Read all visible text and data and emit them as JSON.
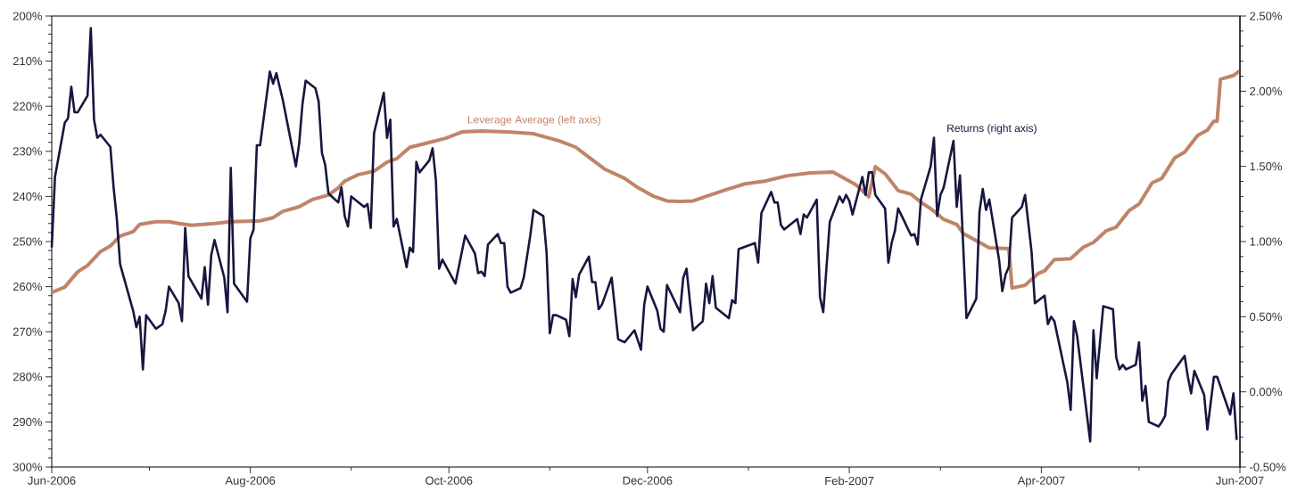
{
  "chart_data": {
    "type": "line",
    "line_style": "solid",
    "xlim": [
      "2006-06-01",
      "2007-06-01"
    ],
    "xticks": [
      {
        "value": "2006-06-01",
        "label": "Jun-2006"
      },
      {
        "value": "2006-07-01",
        "label": null
      },
      {
        "value": "2006-08-01",
        "label": "Aug-2006"
      },
      {
        "value": "2006-09-01",
        "label": null
      },
      {
        "value": "2006-10-01",
        "label": "Oct-2006"
      },
      {
        "value": "2006-11-01",
        "label": null
      },
      {
        "value": "2006-12-01",
        "label": "Dec-2006"
      },
      {
        "value": "2007-01-01",
        "label": null
      },
      {
        "value": "2007-02-01",
        "label": "Feb-2007"
      },
      {
        "value": "2007-03-01",
        "label": null
      },
      {
        "value": "2007-04-01",
        "label": "Apr-2007"
      },
      {
        "value": "2007-05-01",
        "label": null
      },
      {
        "value": "2007-06-01",
        "label": "Jun-2007"
      }
    ],
    "ylim": [
      300,
      200
    ],
    "yticks": [
      {
        "value": 200,
        "label": "200%"
      },
      {
        "value": 202,
        "label": null
      },
      {
        "value": 204,
        "label": null
      },
      {
        "value": 206,
        "label": null
      },
      {
        "value": 208,
        "label": null
      },
      {
        "value": 210,
        "label": "210%"
      },
      {
        "value": 212,
        "label": null
      },
      {
        "value": 214,
        "label": null
      },
      {
        "value": 216,
        "label": null
      },
      {
        "value": 218,
        "label": null
      },
      {
        "value": 220,
        "label": "220%"
      },
      {
        "value": 222,
        "label": null
      },
      {
        "value": 224,
        "label": null
      },
      {
        "value": 226,
        "label": null
      },
      {
        "value": 228,
        "label": null
      },
      {
        "value": 230,
        "label": "230%"
      },
      {
        "value": 232,
        "label": null
      },
      {
        "value": 234,
        "label": null
      },
      {
        "value": 236,
        "label": null
      },
      {
        "value": 238,
        "label": null
      },
      {
        "value": 240,
        "label": "240%"
      },
      {
        "value": 242,
        "label": null
      },
      {
        "value": 244,
        "label": null
      },
      {
        "value": 246,
        "label": null
      },
      {
        "value": 248,
        "label": null
      },
      {
        "value": 250,
        "label": "250%"
      },
      {
        "value": 252,
        "label": null
      },
      {
        "value": 254,
        "label": null
      },
      {
        "value": 256,
        "label": null
      },
      {
        "value": 258,
        "label": null
      },
      {
        "value": 260,
        "label": "260%"
      },
      {
        "value": 262,
        "label": null
      },
      {
        "value": 264,
        "label": null
      },
      {
        "value": 266,
        "label": null
      },
      {
        "value": 268,
        "label": null
      },
      {
        "value": 270,
        "label": "270%"
      },
      {
        "value": 272,
        "label": null
      },
      {
        "value": 274,
        "label": null
      },
      {
        "value": 276,
        "label": null
      },
      {
        "value": 278,
        "label": null
      },
      {
        "value": 280,
        "label": "280%"
      },
      {
        "value": 282,
        "label": null
      },
      {
        "value": 284,
        "label": null
      },
      {
        "value": 286,
        "label": null
      },
      {
        "value": 288,
        "label": null
      },
      {
        "value": 290,
        "label": "290%"
      },
      {
        "value": 292,
        "label": null
      },
      {
        "value": 294,
        "label": null
      },
      {
        "value": 296,
        "label": null
      },
      {
        "value": 298,
        "label": null
      },
      {
        "value": 300,
        "label": "300%"
      }
    ],
    "y2lim": [
      -0.5,
      2.5
    ],
    "y2ticks": [
      {
        "value": -0.5,
        "label": "-0.50%"
      },
      {
        "value": -0.4,
        "label": null
      },
      {
        "value": -0.3,
        "label": null
      },
      {
        "value": -0.2,
        "label": null
      },
      {
        "value": -0.1,
        "label": null
      },
      {
        "value": 0,
        "label": "0.00%"
      },
      {
        "value": 0.1,
        "label": null
      },
      {
        "value": 0.2,
        "label": null
      },
      {
        "value": 0.3,
        "label": null
      },
      {
        "value": 0.4,
        "label": null
      },
      {
        "value": 0.5,
        "label": "0.50%"
      },
      {
        "value": 0.6,
        "label": null
      },
      {
        "value": 0.7,
        "label": null
      },
      {
        "value": 0.8,
        "label": null
      },
      {
        "value": 0.9,
        "label": null
      },
      {
        "value": 1.0,
        "label": "1.00%"
      },
      {
        "value": 1.1,
        "label": null
      },
      {
        "value": 1.2,
        "label": null
      },
      {
        "value": 1.3,
        "label": null
      },
      {
        "value": 1.4,
        "label": null
      },
      {
        "value": 1.5,
        "label": "1.50%"
      },
      {
        "value": 1.6,
        "label": null
      },
      {
        "value": 1.7,
        "label": null
      },
      {
        "value": 1.8,
        "label": null
      },
      {
        "value": 1.9,
        "label": null
      },
      {
        "value": 2.0,
        "label": "2.00%"
      },
      {
        "value": 2.1,
        "label": null
      },
      {
        "value": 2.2,
        "label": null
      },
      {
        "value": 2.3,
        "label": null
      },
      {
        "value": 2.4,
        "label": null
      },
      {
        "value": 2.5,
        "label": "2.50%"
      }
    ],
    "series": [
      {
        "name": "Leverage Average (left axis)",
        "color": "#c08469",
        "axis": "y",
        "x": [
          "2006-06-01",
          "2006-06-05",
          "2006-06-09",
          "2006-06-12",
          "2006-06-16",
          "2006-06-19",
          "2006-06-22",
          "2006-06-26",
          "2006-06-28",
          "2006-07-03",
          "2006-07-07",
          "2006-07-10",
          "2006-07-14",
          "2006-07-21",
          "2006-07-26",
          "2006-08-04",
          "2006-08-08",
          "2006-08-11",
          "2006-08-16",
          "2006-08-20",
          "2006-08-25",
          "2006-08-28",
          "2006-08-30",
          "2006-09-03",
          "2006-09-08",
          "2006-09-12",
          "2006-09-15",
          "2006-09-19",
          "2006-09-24",
          "2006-09-30",
          "2006-10-05",
          "2006-10-11",
          "2006-10-19",
          "2006-10-27",
          "2006-11-04",
          "2006-11-09",
          "2006-11-13",
          "2006-11-18",
          "2006-11-24",
          "2006-11-28",
          "2006-12-03",
          "2006-12-07",
          "2006-12-11",
          "2006-12-15",
          "2006-12-21",
          "2006-12-26",
          "2006-12-31",
          "2007-01-06",
          "2007-01-13",
          "2007-01-20",
          "2007-01-27",
          "2007-02-03",
          "2007-02-07",
          "2007-02-09",
          "2007-02-12",
          "2007-02-16",
          "2007-02-20",
          "2007-02-23",
          "2007-02-26",
          "2007-03-02",
          "2007-03-06",
          "2007-03-08",
          "2007-03-12",
          "2007-03-16",
          "2007-03-22",
          "2007-03-23",
          "2007-03-27",
          "2007-03-31",
          "2007-04-02",
          "2007-04-05",
          "2007-04-10",
          "2007-04-14",
          "2007-04-17",
          "2007-04-21",
          "2007-04-24",
          "2007-04-28",
          "2007-05-01",
          "2007-05-05",
          "2007-05-08",
          "2007-05-12",
          "2007-05-15",
          "2007-05-19",
          "2007-05-22",
          "2007-05-24",
          "2007-05-25",
          "2007-05-26",
          "2007-05-30",
          "2007-06-01"
        ],
        "values": [
          261.3,
          260.1,
          256.7,
          255.3,
          252.2,
          251.0,
          248.8,
          247.8,
          246.2,
          245.6,
          245.6,
          246.0,
          246.4,
          246.0,
          245.6,
          245.4,
          244.7,
          243.3,
          242.3,
          240.7,
          239.7,
          238.1,
          236.6,
          235.2,
          234.4,
          232.4,
          231.6,
          229.1,
          228.2,
          227.1,
          225.7,
          225.5,
          225.7,
          226.1,
          227.7,
          229.1,
          231.3,
          234.0,
          236.0,
          238.0,
          240.0,
          241.0,
          241.1,
          241.0,
          239.5,
          238.3,
          237.2,
          236.6,
          235.4,
          234.8,
          234.6,
          237.4,
          240.1,
          233.4,
          235.0,
          238.7,
          239.5,
          241.3,
          242.7,
          245.1,
          246.2,
          248.2,
          249.8,
          251.4,
          251.6,
          260.3,
          259.7,
          257.1,
          256.5,
          254.0,
          253.8,
          251.2,
          250.2,
          247.6,
          246.8,
          243.1,
          241.7,
          237.0,
          236.0,
          231.4,
          230.2,
          226.5,
          225.3,
          223.3,
          223.3,
          214.0,
          213.2,
          212.1
        ]
      },
      {
        "name": "Returns (right axis)",
        "color": "#16163f",
        "axis": "y2",
        "x": [
          "2006-06-01",
          "2006-06-02",
          "2006-06-05",
          "2006-06-06",
          "2006-06-07",
          "2006-06-08",
          "2006-06-09",
          "2006-06-12",
          "2006-06-13",
          "2006-06-14",
          "2006-06-15",
          "2006-06-16",
          "2006-06-19",
          "2006-06-20",
          "2006-06-21",
          "2006-06-22",
          "2006-06-26",
          "2006-06-27",
          "2006-06-28",
          "2006-06-29",
          "2006-06-30",
          "2006-07-03",
          "2006-07-05",
          "2006-07-06",
          "2006-07-07",
          "2006-07-10",
          "2006-07-11",
          "2006-07-12",
          "2006-07-13",
          "2006-07-17",
          "2006-07-18",
          "2006-07-19",
          "2006-07-20",
          "2006-07-21",
          "2006-07-24",
          "2006-07-25",
          "2006-07-26",
          "2006-07-27",
          "2006-07-31",
          "2006-08-01",
          "2006-08-02",
          "2006-08-03",
          "2006-08-04",
          "2006-08-07",
          "2006-08-08",
          "2006-08-09",
          "2006-08-11",
          "2006-08-15",
          "2006-08-16",
          "2006-08-17",
          "2006-08-18",
          "2006-08-21",
          "2006-08-22",
          "2006-08-23",
          "2006-08-24",
          "2006-08-25",
          "2006-08-28",
          "2006-08-29",
          "2006-08-30",
          "2006-08-31",
          "2006-09-01",
          "2006-09-05",
          "2006-09-06",
          "2006-09-07",
          "2006-09-08",
          "2006-09-11",
          "2006-09-12",
          "2006-09-13",
          "2006-09-14",
          "2006-09-15",
          "2006-09-18",
          "2006-09-19",
          "2006-09-20",
          "2006-09-21",
          "2006-09-22",
          "2006-09-25",
          "2006-09-26",
          "2006-09-27",
          "2006-09-28",
          "2006-09-29",
          "2006-10-03",
          "2006-10-06",
          "2006-10-09",
          "2006-10-10",
          "2006-10-11",
          "2006-10-12",
          "2006-10-13",
          "2006-10-16",
          "2006-10-17",
          "2006-10-18",
          "2006-10-19",
          "2006-10-20",
          "2006-10-23",
          "2006-10-24",
          "2006-10-26",
          "2006-10-27",
          "2006-10-30",
          "2006-10-31",
          "2006-11-01",
          "2006-11-02",
          "2006-11-03",
          "2006-11-06",
          "2006-11-07",
          "2006-11-08",
          "2006-11-09",
          "2006-11-10",
          "2006-11-13",
          "2006-11-14",
          "2006-11-15",
          "2006-11-16",
          "2006-11-17",
          "2006-11-20",
          "2006-11-22",
          "2006-11-24",
          "2006-11-27",
          "2006-11-29",
          "2006-11-30",
          "2006-12-01",
          "2006-12-04",
          "2006-12-05",
          "2006-12-06",
          "2006-12-07",
          "2006-12-11",
          "2006-12-12",
          "2006-12-13",
          "2006-12-14",
          "2006-12-15",
          "2006-12-18",
          "2006-12-19",
          "2006-12-20",
          "2006-12-21",
          "2006-12-22",
          "2006-12-26",
          "2006-12-27",
          "2006-12-28",
          "2006-12-29",
          "2007-01-03",
          "2007-01-04",
          "2007-01-05",
          "2007-01-08",
          "2007-01-09",
          "2007-01-10",
          "2007-01-11",
          "2007-01-12",
          "2007-01-16",
          "2007-01-17",
          "2007-01-18",
          "2007-01-19",
          "2007-01-22",
          "2007-01-23",
          "2007-01-24",
          "2007-01-26",
          "2007-01-29",
          "2007-01-30",
          "2007-01-31",
          "2007-02-01",
          "2007-02-02",
          "2007-02-05",
          "2007-02-06",
          "2007-02-07",
          "2007-02-08",
          "2007-02-09",
          "2007-02-12",
          "2007-02-13",
          "2007-02-14",
          "2007-02-15",
          "2007-02-16",
          "2007-02-20",
          "2007-02-21",
          "2007-02-22",
          "2007-02-23",
          "2007-02-26",
          "2007-02-27",
          "2007-02-28",
          "2007-03-01",
          "2007-03-02",
          "2007-03-05",
          "2007-03-06",
          "2007-03-07",
          "2007-03-09",
          "2007-03-12",
          "2007-03-13",
          "2007-03-14",
          "2007-03-15",
          "2007-03-16",
          "2007-03-19",
          "2007-03-20",
          "2007-03-21",
          "2007-03-22",
          "2007-03-23",
          "2007-03-26",
          "2007-03-27",
          "2007-03-29",
          "2007-03-30",
          "2007-04-02",
          "2007-04-03",
          "2007-04-04",
          "2007-04-05",
          "2007-04-09",
          "2007-04-10",
          "2007-04-11",
          "2007-04-12",
          "2007-04-16",
          "2007-04-17",
          "2007-04-18",
          "2007-04-20",
          "2007-04-23",
          "2007-04-24",
          "2007-04-25",
          "2007-04-26",
          "2007-04-27",
          "2007-04-30",
          "2007-05-01",
          "2007-05-02",
          "2007-05-03",
          "2007-05-04",
          "2007-05-07",
          "2007-05-08",
          "2007-05-09",
          "2007-05-10",
          "2007-05-11",
          "2007-05-15",
          "2007-05-16",
          "2007-05-17",
          "2007-05-18",
          "2007-05-21",
          "2007-05-22",
          "2007-05-24",
          "2007-05-25",
          "2007-05-29",
          "2007-05-30",
          "2007-05-31"
        ],
        "values": [
          0.96,
          1.43,
          1.79,
          1.82,
          2.03,
          1.86,
          1.86,
          1.97,
          2.42,
          1.81,
          1.69,
          1.71,
          1.63,
          1.36,
          1.15,
          0.85,
          0.54,
          0.43,
          0.5,
          0.15,
          0.51,
          0.42,
          0.45,
          0.54,
          0.7,
          0.59,
          0.47,
          1.09,
          0.77,
          0.62,
          0.83,
          0.58,
          0.91,
          1.01,
          0.76,
          0.53,
          1.49,
          0.72,
          0.6,
          1.02,
          1.08,
          1.64,
          1.64,
          2.13,
          2.05,
          2.12,
          1.94,
          1.5,
          1.65,
          1.91,
          2.07,
          2.02,
          1.93,
          1.59,
          1.51,
          1.32,
          1.26,
          1.36,
          1.17,
          1.1,
          1.3,
          1.23,
          1.25,
          1.09,
          1.72,
          1.99,
          1.69,
          1.81,
          1.1,
          1.15,
          0.83,
          0.96,
          0.93,
          1.53,
          1.46,
          1.54,
          1.62,
          1.41,
          0.82,
          0.88,
          0.72,
          1.04,
          0.92,
          0.79,
          0.8,
          0.77,
          0.98,
          1.05,
          0.99,
          0.99,
          0.7,
          0.66,
          0.69,
          0.76,
          1.04,
          1.21,
          1.17,
          0.93,
          0.39,
          0.51,
          0.51,
          0.48,
          0.37,
          0.75,
          0.63,
          0.78,
          0.9,
          0.73,
          0.73,
          0.55,
          0.58,
          0.76,
          0.35,
          0.33,
          0.41,
          0.28,
          0.58,
          0.7,
          0.54,
          0.42,
          0.4,
          0.71,
          0.53,
          0.76,
          0.82,
          0.61,
          0.41,
          0.47,
          0.72,
          0.59,
          0.77,
          0.56,
          0.49,
          0.61,
          0.59,
          0.95,
          0.99,
          0.86,
          1.19,
          1.33,
          1.26,
          1.26,
          1.11,
          1.08,
          1.15,
          1.05,
          1.18,
          1.16,
          1.28,
          0.63,
          0.53,
          1.13,
          1.3,
          1.26,
          1.31,
          1.27,
          1.18,
          1.43,
          1.31,
          1.46,
          1.46,
          1.31,
          1.22,
          0.86,
          0.99,
          1.07,
          1.22,
          1.04,
          1.05,
          0.98,
          1.28,
          1.5,
          1.69,
          1.17,
          1.31,
          1.36,
          1.67,
          1.23,
          1.44,
          0.49,
          0.62,
          1.2,
          1.35,
          1.21,
          1.28,
          0.88,
          0.67,
          0.78,
          0.83,
          1.16,
          1.23,
          1.31,
          0.93,
          0.59,
          0.64,
          0.45,
          0.5,
          0.47,
          0.06,
          -0.12,
          0.47,
          0.37,
          -0.33,
          0.41,
          0.09,
          0.57,
          0.55,
          0.23,
          0.15,
          0.18,
          0.15,
          0.18,
          0.33,
          -0.06,
          0.04,
          -0.2,
          -0.23,
          -0.2,
          -0.16,
          0.07,
          0.12,
          0.24,
          0.1,
          -0.01,
          0.14,
          -0.02,
          -0.25,
          0.1,
          0.1,
          -0.15,
          -0.01,
          -0.32
        ]
      }
    ]
  }
}
